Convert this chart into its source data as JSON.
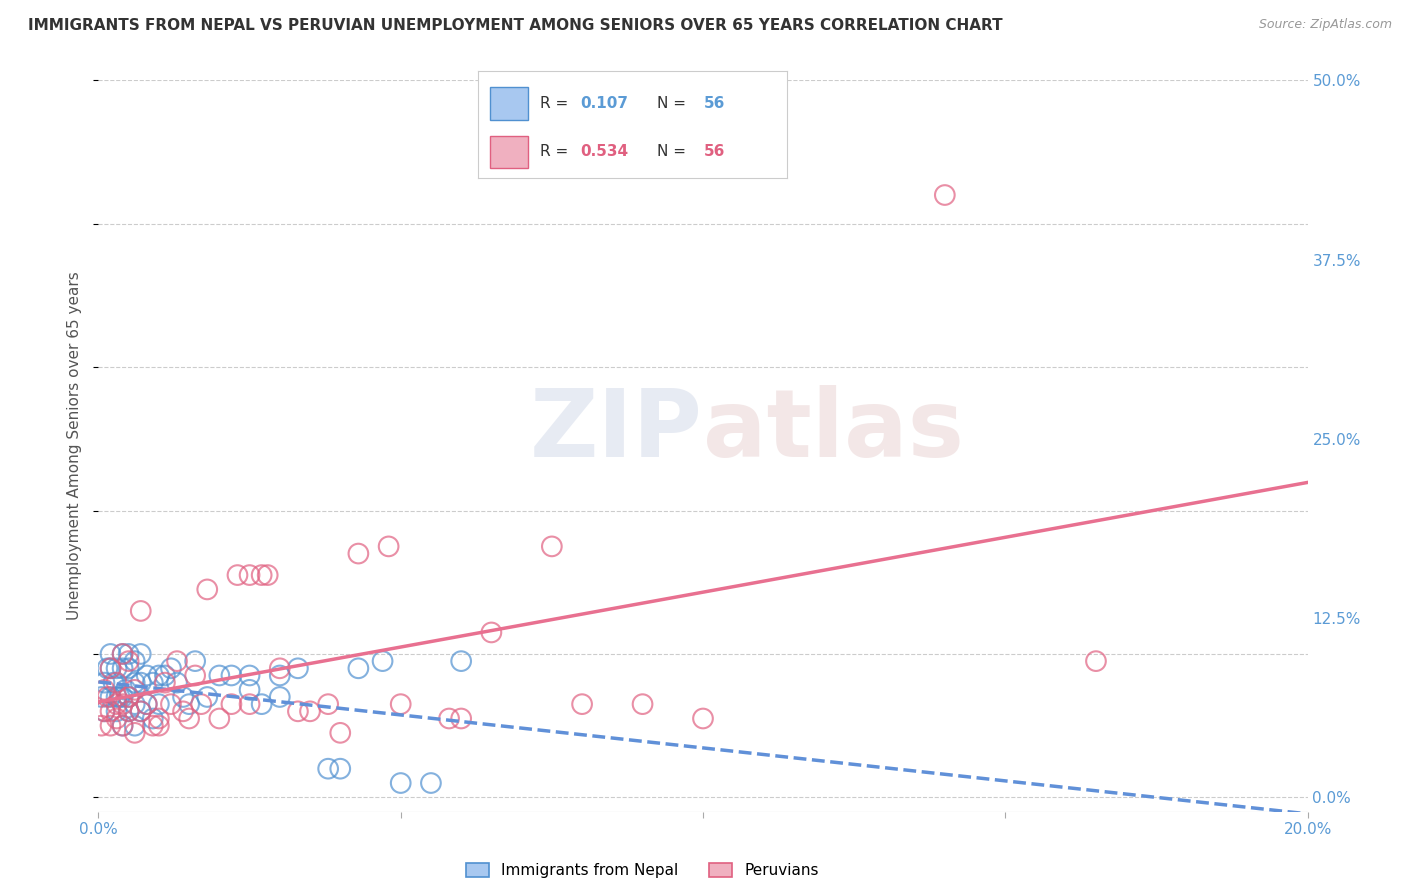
{
  "title": "IMMIGRANTS FROM NEPAL VS PERUVIAN UNEMPLOYMENT AMONG SENIORS OVER 65 YEARS CORRELATION CHART",
  "source": "Source: ZipAtlas.com",
  "ylabel": "Unemployment Among Seniors over 65 years",
  "xlim": [
    0.0,
    0.2
  ],
  "ylim": [
    -0.01,
    0.5
  ],
  "ytick_labels_right": [
    "50.0%",
    "37.5%",
    "25.0%",
    "12.5%",
    "0.0%"
  ],
  "yticks": [
    0.5,
    0.375,
    0.25,
    0.125,
    0.0
  ],
  "nepal_color": "#a8c8f0",
  "peru_color": "#f0b0c0",
  "nepal_edge_color": "#5090d0",
  "peru_edge_color": "#e06080",
  "nepal_line_color": "#6090d8",
  "peru_line_color": "#e87090",
  "legend_label1": "Immigrants from Nepal",
  "legend_label2": "Peruvians",
  "watermark": "ZIPatlas",
  "background_color": "#ffffff",
  "grid_color": "#cccccc",
  "tick_color": "#5b9bd5",
  "nepal_x": [
    0.0005,
    0.001,
    0.001,
    0.0015,
    0.002,
    0.002,
    0.002,
    0.0025,
    0.003,
    0.003,
    0.003,
    0.0035,
    0.004,
    0.004,
    0.004,
    0.004,
    0.0045,
    0.005,
    0.005,
    0.005,
    0.005,
    0.006,
    0.006,
    0.006,
    0.006,
    0.007,
    0.007,
    0.007,
    0.008,
    0.008,
    0.009,
    0.009,
    0.01,
    0.01,
    0.011,
    0.012,
    0.013,
    0.014,
    0.015,
    0.016,
    0.018,
    0.02,
    0.022,
    0.025,
    0.025,
    0.027,
    0.03,
    0.03,
    0.033,
    0.038,
    0.04,
    0.043,
    0.047,
    0.05,
    0.055,
    0.06
  ],
  "nepal_y": [
    0.07,
    0.06,
    0.08,
    0.09,
    0.07,
    0.09,
    0.1,
    0.08,
    0.06,
    0.07,
    0.09,
    0.07,
    0.05,
    0.07,
    0.09,
    0.1,
    0.075,
    0.06,
    0.07,
    0.09,
    0.1,
    0.05,
    0.065,
    0.08,
    0.095,
    0.06,
    0.08,
    0.1,
    0.065,
    0.085,
    0.055,
    0.08,
    0.065,
    0.085,
    0.085,
    0.09,
    0.08,
    0.07,
    0.065,
    0.095,
    0.07,
    0.085,
    0.085,
    0.075,
    0.085,
    0.065,
    0.07,
    0.085,
    0.09,
    0.02,
    0.02,
    0.09,
    0.095,
    0.01,
    0.01,
    0.095
  ],
  "peru_x": [
    0.0005,
    0.001,
    0.001,
    0.0015,
    0.002,
    0.002,
    0.002,
    0.003,
    0.003,
    0.003,
    0.004,
    0.004,
    0.004,
    0.005,
    0.005,
    0.005,
    0.006,
    0.006,
    0.007,
    0.007,
    0.008,
    0.009,
    0.01,
    0.01,
    0.011,
    0.012,
    0.013,
    0.014,
    0.015,
    0.016,
    0.017,
    0.018,
    0.02,
    0.022,
    0.023,
    0.025,
    0.025,
    0.027,
    0.028,
    0.03,
    0.033,
    0.035,
    0.038,
    0.04,
    0.043,
    0.048,
    0.05,
    0.058,
    0.06,
    0.065,
    0.075,
    0.08,
    0.09,
    0.1,
    0.14,
    0.165
  ],
  "peru_y": [
    0.05,
    0.06,
    0.075,
    0.07,
    0.05,
    0.06,
    0.09,
    0.055,
    0.065,
    0.08,
    0.05,
    0.065,
    0.1,
    0.06,
    0.07,
    0.095,
    0.045,
    0.075,
    0.06,
    0.13,
    0.065,
    0.05,
    0.05,
    0.055,
    0.08,
    0.065,
    0.095,
    0.06,
    0.055,
    0.085,
    0.065,
    0.145,
    0.055,
    0.065,
    0.155,
    0.155,
    0.065,
    0.155,
    0.155,
    0.09,
    0.06,
    0.06,
    0.065,
    0.045,
    0.17,
    0.175,
    0.065,
    0.055,
    0.055,
    0.115,
    0.175,
    0.065,
    0.065,
    0.055,
    0.42,
    0.095
  ]
}
